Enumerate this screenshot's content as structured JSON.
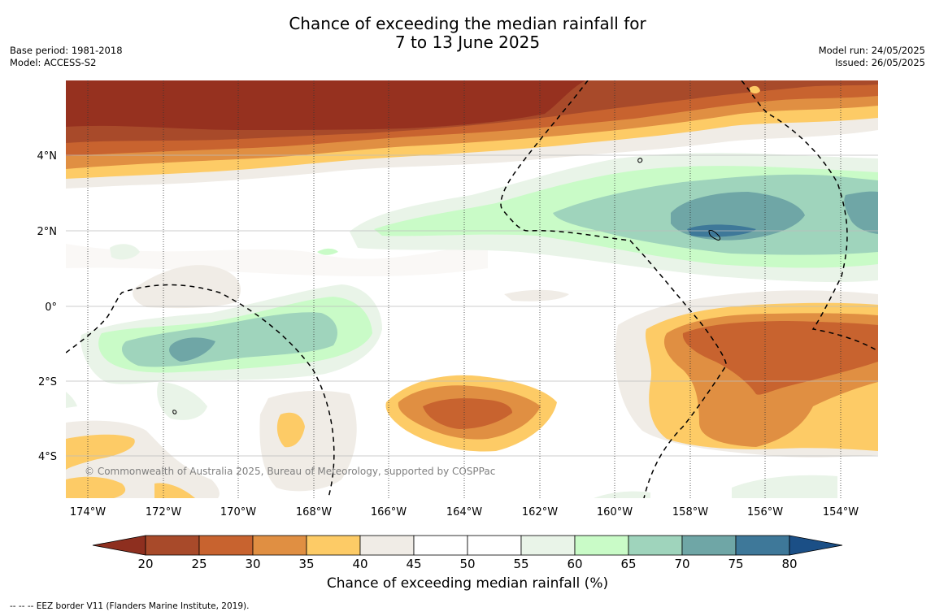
{
  "title": {
    "line1": "Chance of exceeding the median rainfall for",
    "line2": "7 to 13 June 2025"
  },
  "meta_left": {
    "base_period": "Base period: 1981-2018",
    "model": "Model: ACCESS-S2"
  },
  "meta_right": {
    "model_run": "Model run: 24/05/2025",
    "issued": "Issued: 26/05/2025"
  },
  "map": {
    "lat_labels": [
      "4°N",
      "2°N",
      "0°",
      "2°S",
      "4°S"
    ],
    "lon_labels": [
      "174°W",
      "172°W",
      "170°W",
      "168°W",
      "166°W",
      "164°W",
      "162°W",
      "160°W",
      "158°W",
      "156°W",
      "154°W"
    ],
    "copyright": "© Commonwealth of Australia 2025, Bureau of Meteorology, supported by COSPPac",
    "overlay_line": "EEZ border (dashed)"
  },
  "legend": {
    "ticks": [
      "20",
      "25",
      "30",
      "35",
      "40",
      "45",
      "50",
      "55",
      "60",
      "65",
      "70",
      "75",
      "80"
    ],
    "colors": [
      "#a84a2a",
      "#c8632f",
      "#e08f42",
      "#fdcb66",
      "#f0ece6",
      "#ffffff",
      "#ffffff",
      "#e9f4e8",
      "#c9fbc7",
      "#9fd4bc",
      "#6fa6a6",
      "#3e7899"
    ],
    "low_arrow_color": "#8e2f1f",
    "high_arrow_color": "#1b4f86",
    "title": "Chance of exceeding median rainfall (%)"
  },
  "footer": {
    "text": "--  --  -- EEZ border V11 (Flanders Marine Institute, 2019)."
  }
}
